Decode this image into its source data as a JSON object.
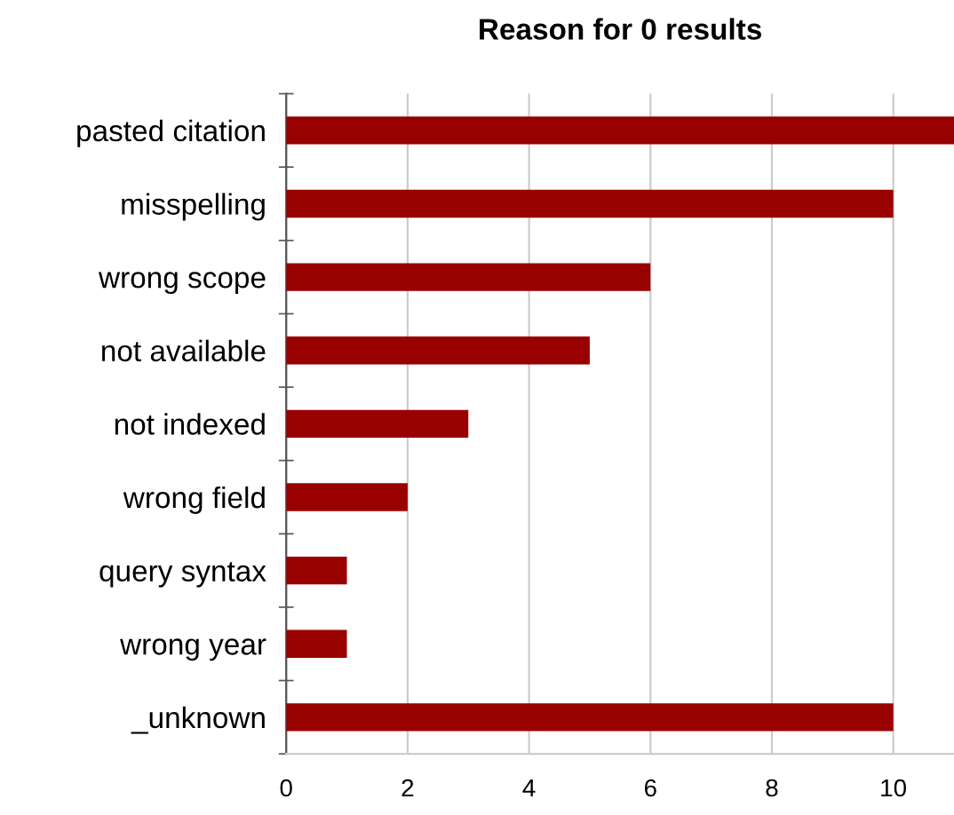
{
  "chart_data": {
    "type": "bar",
    "orientation": "horizontal",
    "title": "Reason for 0 results",
    "categories": [
      "pasted citation",
      "misspelling",
      "wrong scope",
      "not available",
      "not indexed",
      "wrong field",
      "query syntax",
      "wrong year",
      "_unknown"
    ],
    "values": [
      11,
      10,
      6,
      5,
      3,
      2,
      1,
      1,
      10
    ],
    "color": "#990000",
    "xlim": [
      0,
      11
    ],
    "xticks": [
      0,
      2,
      4,
      6,
      8,
      10
    ],
    "grid": "x"
  }
}
